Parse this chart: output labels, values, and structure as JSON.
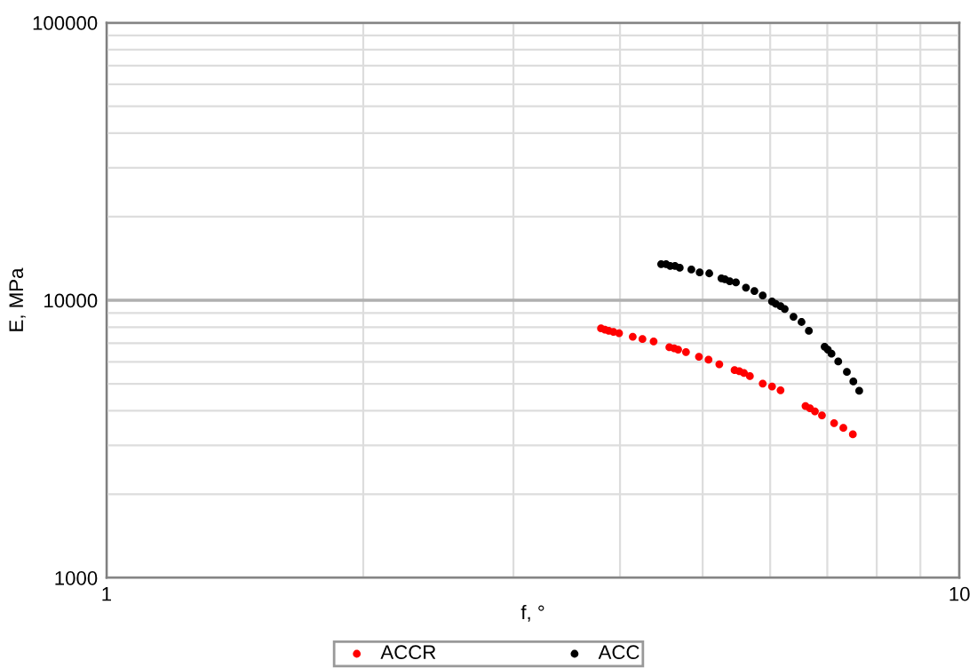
{
  "chart_data": {
    "type": "scatter",
    "xlabel": "f, °",
    "ylabel": "E, MPa",
    "log": "xy",
    "xlim": [
      1,
      10
    ],
    "ylim": [
      1000,
      100000
    ],
    "xticks": [
      1,
      10
    ],
    "yticks": [
      1000,
      10000,
      100000
    ],
    "grid": true,
    "legend": "bottom",
    "marker": "circle",
    "series": [
      {
        "name": "ACCR",
        "color": "#ff0000",
        "x": [
          3.8,
          3.84,
          3.88,
          3.93,
          3.99,
          4.14,
          4.25,
          4.38,
          4.57,
          4.63,
          4.68,
          4.78,
          4.95,
          5.08,
          5.23,
          5.45,
          5.52,
          5.59,
          5.68,
          5.88,
          6.03,
          6.17,
          6.6,
          6.68,
          6.77,
          6.9,
          7.13,
          7.31,
          7.5
        ],
        "values": [
          7920,
          7840,
          7760,
          7690,
          7610,
          7390,
          7250,
          7110,
          6770,
          6710,
          6640,
          6510,
          6260,
          6110,
          5880,
          5600,
          5550,
          5470,
          5330,
          5010,
          4890,
          4740,
          4160,
          4080,
          3980,
          3850,
          3610,
          3470,
          3290
        ]
      },
      {
        "name": "ACC",
        "color": "#000000",
        "x": [
          4.47,
          4.53,
          4.58,
          4.64,
          4.7,
          4.85,
          4.96,
          5.09,
          5.26,
          5.31,
          5.38,
          5.47,
          5.62,
          5.75,
          5.88,
          6.03,
          6.09,
          6.17,
          6.24,
          6.39,
          6.53,
          6.66,
          6.95,
          7.01,
          7.08,
          7.21,
          7.38,
          7.51,
          7.63
        ],
        "values": [
          13500,
          13500,
          13300,
          13300,
          13100,
          12900,
          12600,
          12500,
          12000,
          11900,
          11700,
          11600,
          11100,
          10800,
          10400,
          9900,
          9710,
          9520,
          9300,
          8720,
          8350,
          7760,
          6800,
          6640,
          6420,
          6020,
          5520,
          5100,
          4720
        ]
      }
    ]
  }
}
